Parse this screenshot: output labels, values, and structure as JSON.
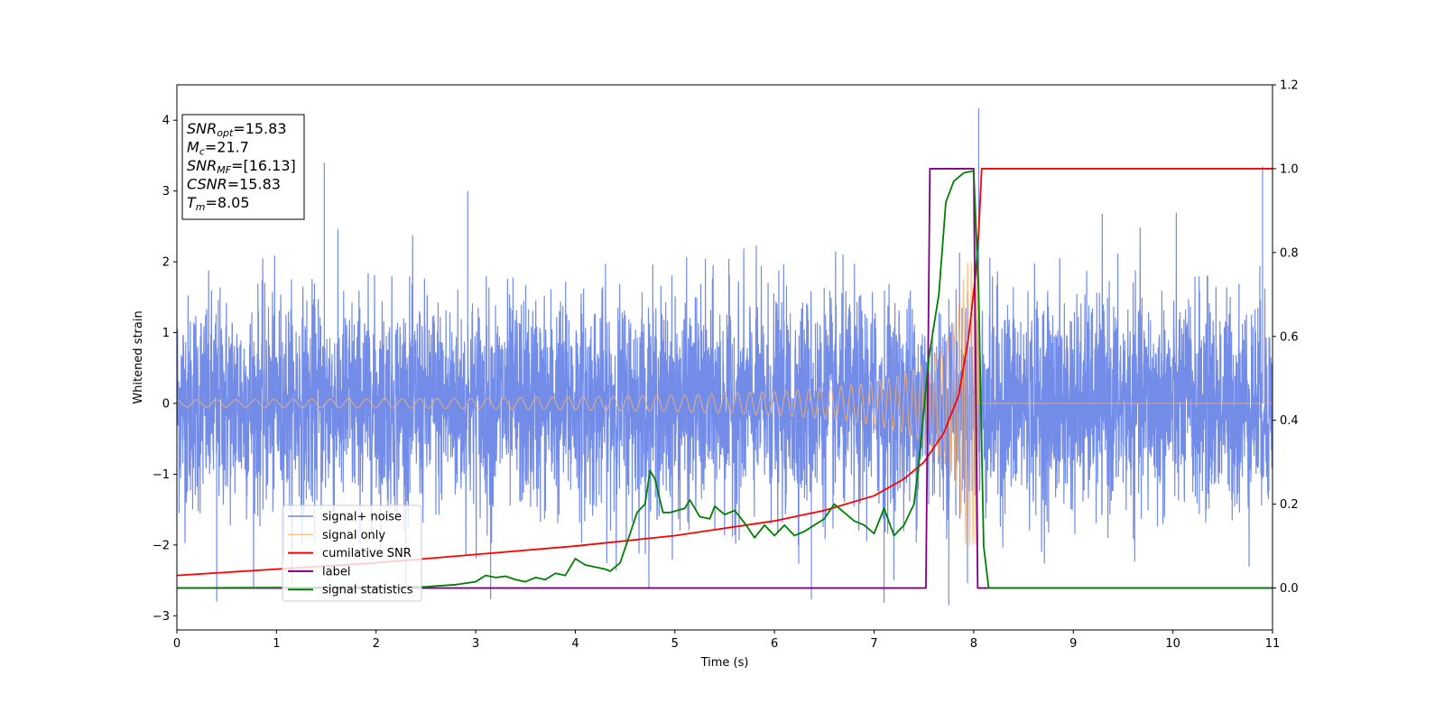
{
  "chart_data": {
    "type": "line",
    "xlabel": "Time (s)",
    "ylabel": "Whitened strain",
    "xlim": [
      0,
      11
    ],
    "ylim_left": [
      -3.2,
      4.5
    ],
    "ylim_right": [
      -0.1,
      1.2
    ],
    "x_ticks": [
      0,
      1,
      2,
      3,
      4,
      5,
      6,
      7,
      8,
      9,
      10,
      11
    ],
    "x_tick_labels": [
      "0",
      "1",
      "2",
      "3",
      "4",
      "5",
      "6",
      "7",
      "8",
      "9",
      "10",
      "11"
    ],
    "y_left_ticks": [
      -3,
      -2,
      -1,
      0,
      1,
      2,
      3,
      4
    ],
    "y_left_tick_labels": [
      "−3",
      "−2",
      "−1",
      "0",
      "1",
      "2",
      "3",
      "4"
    ],
    "y_right_ticks": [
      0.0,
      0.2,
      0.4,
      0.6,
      0.8,
      1.0,
      1.2
    ],
    "y_right_tick_labels": [
      "0.0",
      "0.2",
      "0.4",
      "0.6",
      "0.8",
      "1.0",
      "1.2"
    ],
    "grid": false,
    "legend_position": "lower-left",
    "stats_box": {
      "position": "top-left",
      "lines": [
        {
          "name": "SNR",
          "sub": "opt",
          "value": "=15.83"
        },
        {
          "name": "M",
          "sub": "c",
          "value": "=21.7"
        },
        {
          "name": "SNR",
          "sub": "MF",
          "value": "=[16.13]"
        },
        {
          "name": "CSNR",
          "sub": "",
          "value": "=15.83"
        },
        {
          "name": "T",
          "sub": "m",
          "value": "=8.05"
        }
      ]
    },
    "series": [
      {
        "name": "signal+ noise",
        "axis": "left",
        "color": "#6b86e6",
        "kind": "noise",
        "sigma": 0.75,
        "spike_peaks": [
          {
            "x": 1.48,
            "y": 3.4
          },
          {
            "x": 8.05,
            "y": 4.17
          },
          {
            "x": 10.9,
            "y": 3.35
          },
          {
            "x": 2.92,
            "y": 3.0
          },
          {
            "x": 7.75,
            "y": -2.85
          },
          {
            "x": 0.4,
            "y": -2.8
          },
          {
            "x": 7.1,
            "y": -2.82
          },
          {
            "x": 3.15,
            "y": -2.77
          },
          {
            "x": 6.37,
            "y": -2.77
          }
        ]
      },
      {
        "name": "signal only",
        "axis": "left",
        "color": "#ffb366",
        "kind": "chirp",
        "t_merger": 8.05,
        "amp_start": 0.05,
        "amp_peak": 2.0
      },
      {
        "name": "cumilative SNR",
        "axis": "right",
        "color": "#ff0000",
        "points": [
          [
            0,
            0.03
          ],
          [
            1,
            0.045
          ],
          [
            2,
            0.06
          ],
          [
            3,
            0.08
          ],
          [
            4,
            0.1
          ],
          [
            5,
            0.125
          ],
          [
            6,
            0.16
          ],
          [
            6.5,
            0.185
          ],
          [
            7,
            0.22
          ],
          [
            7.3,
            0.26
          ],
          [
            7.5,
            0.3
          ],
          [
            7.7,
            0.37
          ],
          [
            7.85,
            0.46
          ],
          [
            7.95,
            0.6
          ],
          [
            8.02,
            0.75
          ],
          [
            8.05,
            0.85
          ],
          [
            8.08,
            1.0
          ],
          [
            11,
            1.0
          ]
        ]
      },
      {
        "name": "label",
        "axis": "right",
        "color": "#800080",
        "points": [
          [
            0,
            0.0
          ],
          [
            7.52,
            0.0
          ],
          [
            7.56,
            1.0
          ],
          [
            8.0,
            1.0
          ],
          [
            8.04,
            0.0
          ],
          [
            11,
            0.0
          ]
        ]
      },
      {
        "name": "signal statistics",
        "axis": "right",
        "color": "#008000",
        "points": [
          [
            0,
            0.0
          ],
          [
            2.0,
            0.002
          ],
          [
            2.5,
            0.003
          ],
          [
            2.8,
            0.008
          ],
          [
            3.0,
            0.015
          ],
          [
            3.1,
            0.03
          ],
          [
            3.2,
            0.025
          ],
          [
            3.3,
            0.028
          ],
          [
            3.4,
            0.02
          ],
          [
            3.5,
            0.015
          ],
          [
            3.6,
            0.025
          ],
          [
            3.7,
            0.02
          ],
          [
            3.8,
            0.035
          ],
          [
            3.9,
            0.03
          ],
          [
            4.0,
            0.07
          ],
          [
            4.1,
            0.055
          ],
          [
            4.3,
            0.045
          ],
          [
            4.35,
            0.04
          ],
          [
            4.45,
            0.06
          ],
          [
            4.55,
            0.13
          ],
          [
            4.62,
            0.18
          ],
          [
            4.7,
            0.2
          ],
          [
            4.75,
            0.28
          ],
          [
            4.8,
            0.26
          ],
          [
            4.88,
            0.18
          ],
          [
            4.95,
            0.18
          ],
          [
            5.1,
            0.19
          ],
          [
            5.15,
            0.21
          ],
          [
            5.25,
            0.17
          ],
          [
            5.35,
            0.165
          ],
          [
            5.4,
            0.195
          ],
          [
            5.5,
            0.175
          ],
          [
            5.6,
            0.185
          ],
          [
            5.7,
            0.155
          ],
          [
            5.8,
            0.12
          ],
          [
            5.9,
            0.15
          ],
          [
            6.0,
            0.125
          ],
          [
            6.1,
            0.15
          ],
          [
            6.2,
            0.125
          ],
          [
            6.3,
            0.135
          ],
          [
            6.5,
            0.165
          ],
          [
            6.6,
            0.2
          ],
          [
            6.7,
            0.18
          ],
          [
            6.8,
            0.16
          ],
          [
            6.9,
            0.15
          ],
          [
            7.0,
            0.13
          ],
          [
            7.1,
            0.19
          ],
          [
            7.2,
            0.125
          ],
          [
            7.3,
            0.15
          ],
          [
            7.4,
            0.2
          ],
          [
            7.45,
            0.3
          ],
          [
            7.55,
            0.55
          ],
          [
            7.65,
            0.7
          ],
          [
            7.72,
            0.92
          ],
          [
            7.8,
            0.97
          ],
          [
            7.9,
            0.99
          ],
          [
            8.0,
            0.995
          ],
          [
            8.05,
            0.7
          ],
          [
            8.1,
            0.1
          ],
          [
            8.15,
            0.0
          ],
          [
            11,
            0.0
          ]
        ]
      }
    ]
  }
}
